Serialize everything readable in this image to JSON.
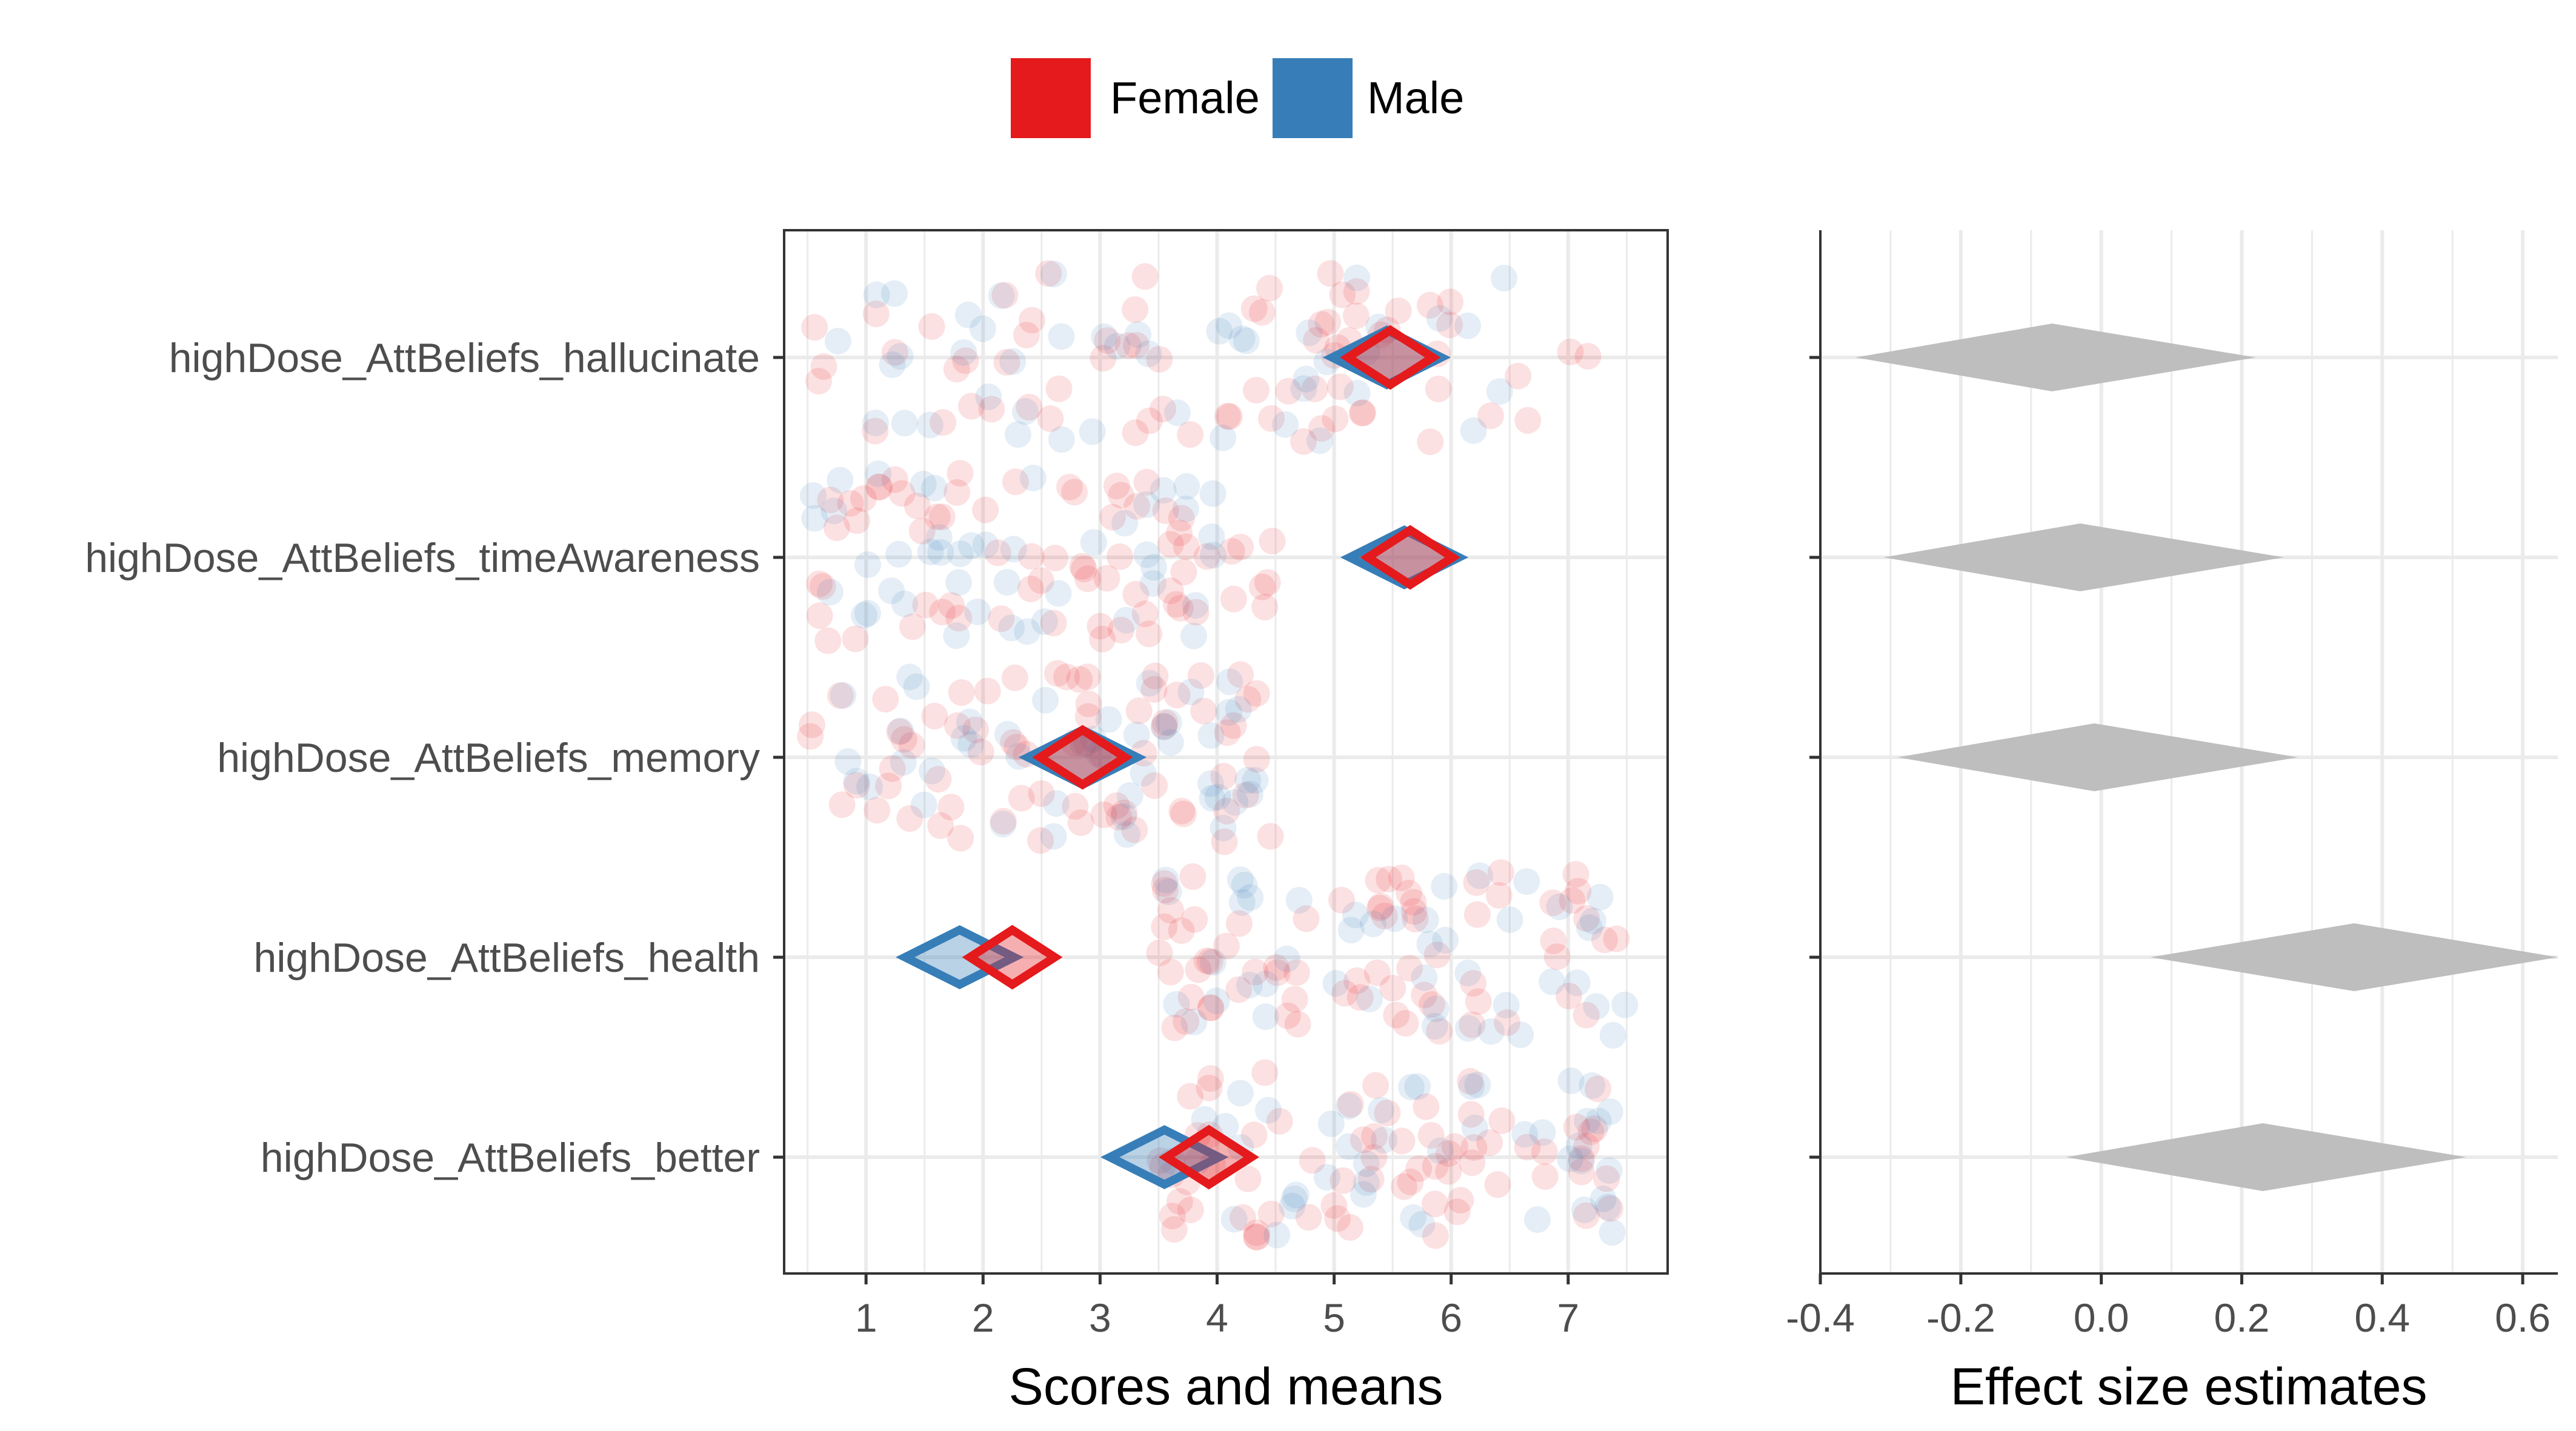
{
  "legend": {
    "entries": [
      {
        "label": "Female",
        "color": "#E41A1C"
      },
      {
        "label": "Male",
        "color": "#377EB8"
      }
    ],
    "placement": "top-center"
  },
  "chart_data": [
    {
      "type": "scatter",
      "panel": "left",
      "xlabel": "Scores and means",
      "ylabel": "",
      "xlim": [
        0.3,
        7.85
      ],
      "xticks": [
        1,
        2,
        3,
        4,
        5,
        6,
        7
      ],
      "grid": true,
      "categories": [
        "highDose_AttBeliefs_hallucinate",
        "highDose_AttBeliefs_timeAwareness",
        "highDose_AttBeliefs_memory",
        "highDose_AttBeliefs_health",
        "highDose_AttBeliefs_better"
      ],
      "point_ranges": [
        {
          "female": [
            0.5,
            7.2
          ],
          "male": [
            0.5,
            6.6
          ]
        },
        {
          "female": [
            0.5,
            4.5
          ],
          "male": [
            0.5,
            4.1
          ]
        },
        {
          "female": [
            0.5,
            4.5
          ],
          "male": [
            0.5,
            4.4
          ]
        },
        {
          "female": [
            3.5,
            7.5
          ],
          "male": [
            3.5,
            7.5
          ]
        },
        {
          "female": [
            3.5,
            7.5
          ],
          "male": [
            3.5,
            7.5
          ]
        }
      ],
      "series": [
        {
          "name": "Female",
          "color": "#E41A1C",
          "means": [
            5.48,
            5.65,
            2.85,
            2.25,
            3.93
          ]
        },
        {
          "name": "Male",
          "color": "#377EB8",
          "means": [
            5.45,
            5.6,
            2.85,
            1.8,
            3.55
          ]
        }
      ]
    },
    {
      "type": "scatter",
      "panel": "right",
      "xlabel": "Effect size estimates",
      "ylabel": "",
      "xlim": [
        -0.4,
        0.65
      ],
      "xticks": [
        -0.4,
        -0.2,
        0.0,
        0.2,
        0.4,
        0.6
      ],
      "xticklabels": [
        "-0.4",
        "-0.2",
        "0.0",
        "0.2",
        "0.4",
        "0.6"
      ],
      "grid": true,
      "color": "#BEBEBE",
      "estimates": [
        {
          "lower": -0.35,
          "point": -0.07,
          "upper": 0.22
        },
        {
          "lower": -0.31,
          "point": -0.03,
          "upper": 0.26
        },
        {
          "lower": -0.29,
          "point": -0.01,
          "upper": 0.28
        },
        {
          "lower": 0.07,
          "point": 0.36,
          "upper": 0.65
        },
        {
          "lower": -0.05,
          "point": 0.23,
          "upper": 0.52
        }
      ]
    }
  ]
}
